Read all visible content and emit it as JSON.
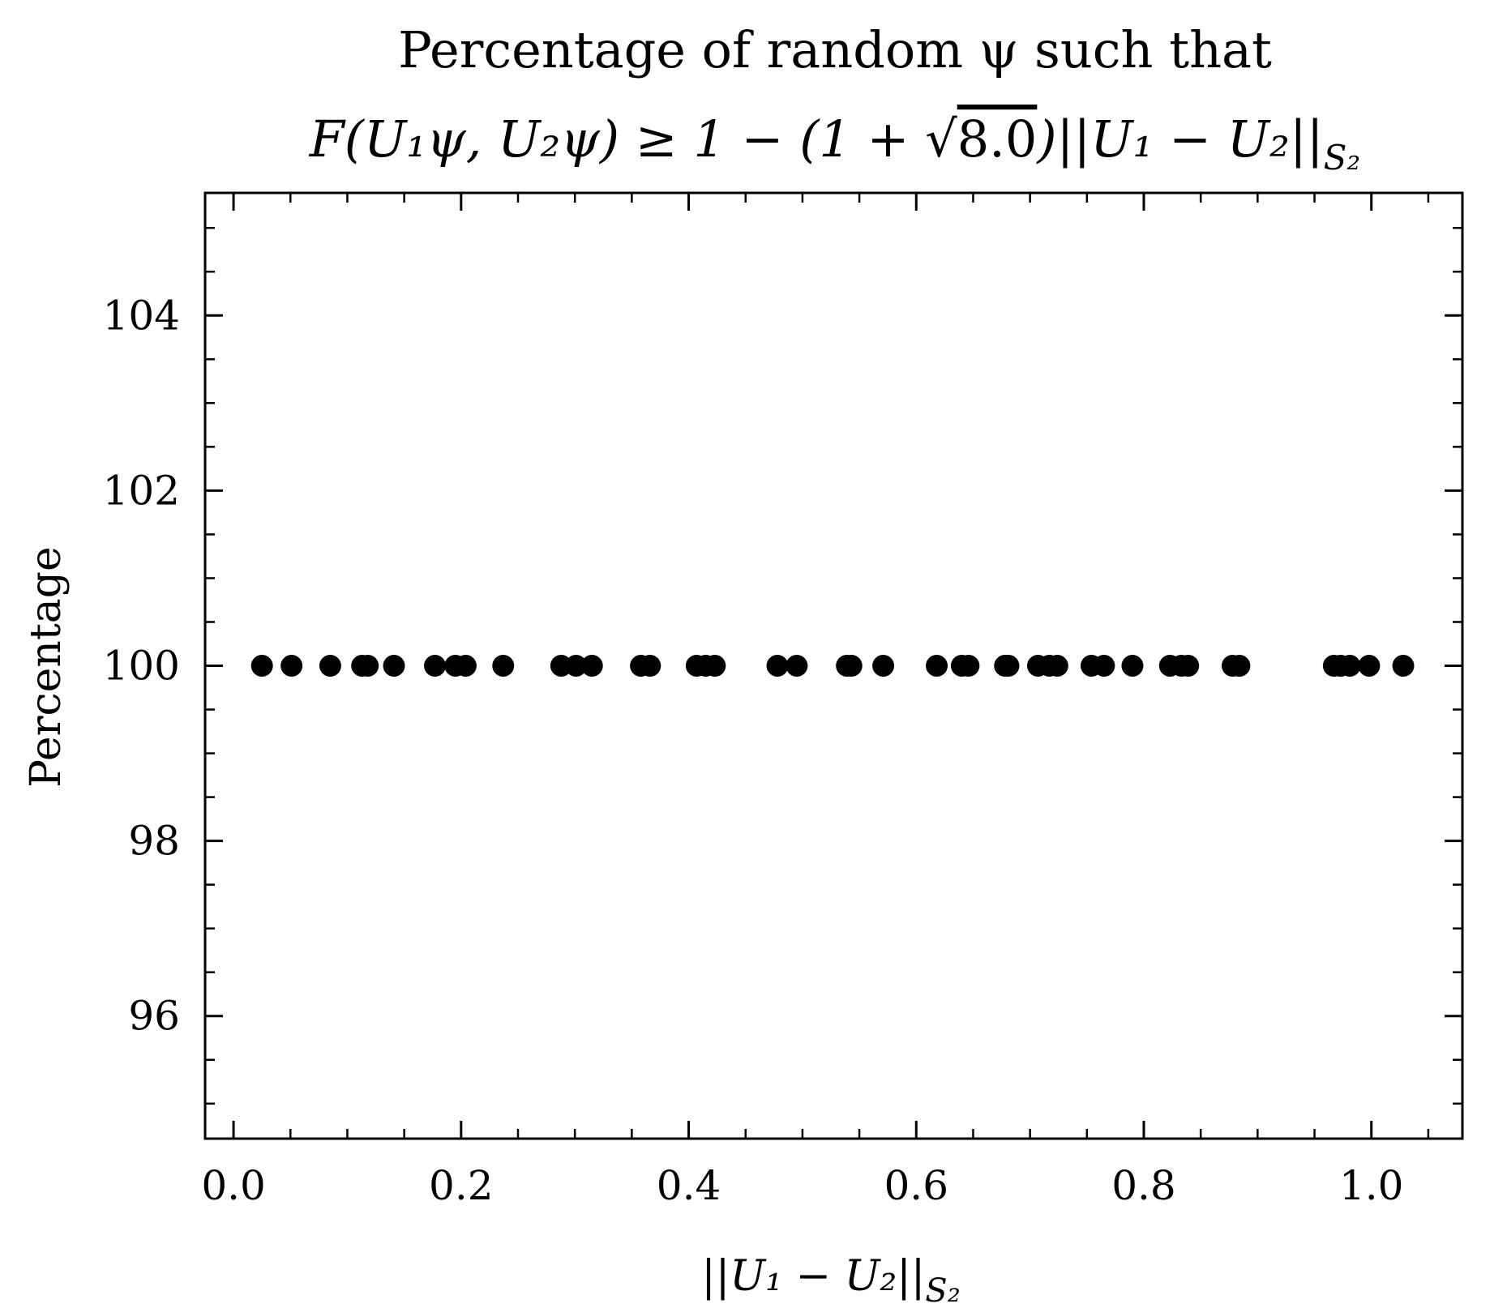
{
  "chart_data": {
    "type": "scatter",
    "title_line1": "Percentage of random ψ such that",
    "title_line2": {
      "lhs": "F(U₁ψ, U₂ψ) ≥ 1 − (1 + √",
      "sqrt_arg": "8.0",
      "rhs": ")||U₁ − U₂||",
      "subscript": "S₂"
    },
    "xlabel": {
      "main": "||U₁ − U₂||",
      "subscript": "S₂"
    },
    "ylabel": "Percentage",
    "xlim": [
      -0.025,
      1.08
    ],
    "ylim": [
      94.6,
      105.4
    ],
    "x_ticks": [
      0.0,
      0.2,
      0.4,
      0.6,
      0.8,
      1.0
    ],
    "x_tick_labels": [
      "0.0",
      "0.2",
      "0.4",
      "0.6",
      "0.8",
      "1.0"
    ],
    "y_ticks": [
      96,
      98,
      100,
      102,
      104
    ],
    "y_tick_labels": [
      "96",
      "98",
      "100",
      "102",
      "104"
    ],
    "grid": false,
    "marker_color": "#000000",
    "series": [
      {
        "x": [
          0.025,
          0.051,
          0.085,
          0.113,
          0.118,
          0.141,
          0.177,
          0.195,
          0.204,
          0.237,
          0.288,
          0.301,
          0.315,
          0.358,
          0.366,
          0.407,
          0.415,
          0.423,
          0.478,
          0.495,
          0.539,
          0.543,
          0.571,
          0.618,
          0.64,
          0.646,
          0.678,
          0.681,
          0.707,
          0.717,
          0.724,
          0.754,
          0.765,
          0.79,
          0.823,
          0.833,
          0.839,
          0.878,
          0.884,
          0.967,
          0.973,
          0.981,
          0.998,
          1.028
        ],
        "y": [
          100,
          100,
          100,
          100,
          100,
          100,
          100,
          100,
          100,
          100,
          100,
          100,
          100,
          100,
          100,
          100,
          100,
          100,
          100,
          100,
          100,
          100,
          100,
          100,
          100,
          100,
          100,
          100,
          100,
          100,
          100,
          100,
          100,
          100,
          100,
          100,
          100,
          100,
          100,
          100,
          100,
          100,
          100,
          100
        ]
      }
    ]
  }
}
